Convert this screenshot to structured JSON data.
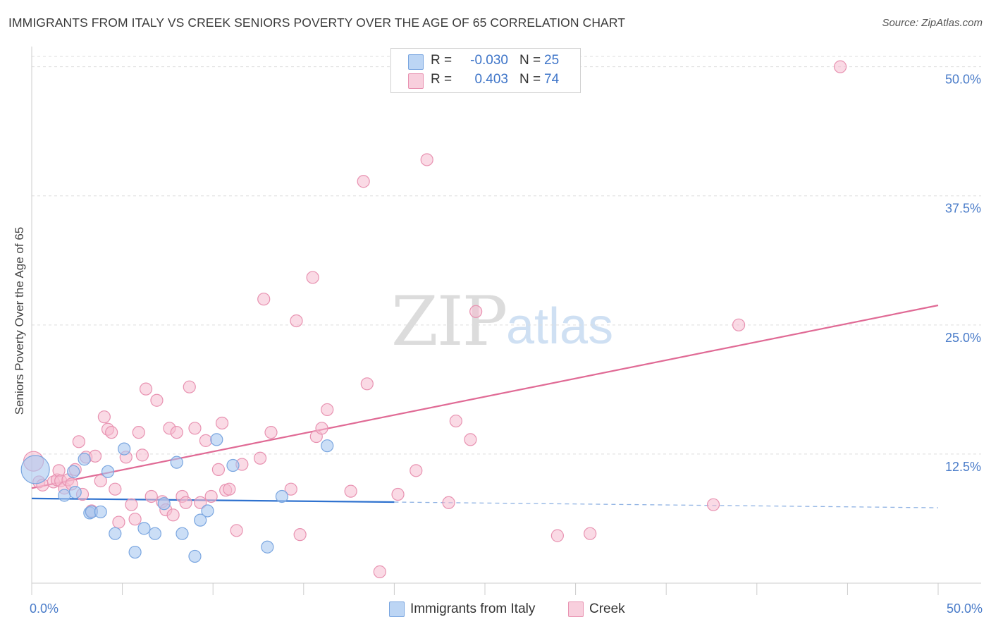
{
  "title": "IMMIGRANTS FROM ITALY VS CREEK SENIORS POVERTY OVER THE AGE OF 65 CORRELATION CHART",
  "source": "Source: ZipAtlas.com",
  "watermark": {
    "zip": "ZIP",
    "atlas": "atlas"
  },
  "legend": [
    {
      "r_label": "R =",
      "r_value": "-0.030",
      "n_label": "N =",
      "n_value": "25"
    },
    {
      "r_label": "R =",
      "r_value": "0.403",
      "n_label": "N =",
      "n_value": "74"
    }
  ],
  "bottom_legend": [
    "Immigrants from Italy",
    "Creek"
  ],
  "colors": {
    "blue_fill": "#a9c8f0",
    "blue_stroke": "#7aa6e0",
    "blue_line": "#2f72cf",
    "pink_fill": "#f6bcd0",
    "pink_stroke": "#e892b1",
    "pink_line": "#e06a95",
    "grid": "#dddddd",
    "axis_text": "#4a7cc9"
  },
  "chart_data": {
    "type": "scatter",
    "title": "IMMIGRANTS FROM ITALY VS CREEK SENIORS POVERTY OVER THE AGE OF 65 CORRELATION CHART",
    "xlabel": "",
    "ylabel": "Seniors Poverty Over the Age of 65",
    "xlim": [
      0,
      50
    ],
    "ylim": [
      0,
      51
    ],
    "x_tick_labels": [
      "0.0%",
      "50.0%"
    ],
    "y_ticks": [
      12.5,
      25.0,
      37.5,
      50.0
    ],
    "y_tick_labels": [
      "12.5%",
      "25.0%",
      "37.5%",
      "50.0%"
    ],
    "grid": true,
    "legend_position": "top-center",
    "series": [
      {
        "name": "Immigrants from Italy",
        "color": "blue",
        "r": -0.03,
        "n": 25,
        "trend": {
          "x0": 0,
          "y0": 8.2,
          "x_solid_end": 20,
          "y_solid_end": 7.85,
          "x1": 50,
          "y1": 7.3
        },
        "points": [
          [
            0.2,
            11.0
          ],
          [
            1.8,
            8.5
          ],
          [
            2.3,
            10.8
          ],
          [
            2.4,
            8.8
          ],
          [
            2.9,
            12.0
          ],
          [
            3.2,
            6.8
          ],
          [
            3.3,
            6.9
          ],
          [
            3.8,
            6.9
          ],
          [
            4.2,
            10.8
          ],
          [
            4.6,
            4.8
          ],
          [
            5.1,
            13.0
          ],
          [
            5.7,
            3.0
          ],
          [
            6.2,
            5.3
          ],
          [
            6.8,
            4.8
          ],
          [
            7.3,
            7.7
          ],
          [
            8.0,
            11.7
          ],
          [
            8.3,
            4.8
          ],
          [
            9.0,
            2.6
          ],
          [
            9.3,
            6.1
          ],
          [
            9.7,
            7.0
          ],
          [
            10.2,
            13.9
          ],
          [
            11.1,
            11.4
          ],
          [
            13.0,
            3.5
          ],
          [
            13.8,
            8.4
          ],
          [
            16.3,
            13.3
          ]
        ]
      },
      {
        "name": "Creek",
        "color": "pink",
        "r": 0.403,
        "n": 74,
        "trend": {
          "x0": 0,
          "y0": 9.2,
          "x1": 50,
          "y1": 26.9
        },
        "points": [
          [
            0.1,
            11.8
          ],
          [
            0.4,
            9.8
          ],
          [
            0.6,
            9.5
          ],
          [
            1.2,
            9.8
          ],
          [
            1.4,
            10.0
          ],
          [
            1.5,
            10.9
          ],
          [
            1.6,
            9.9
          ],
          [
            1.8,
            9.2
          ],
          [
            2.0,
            10.0
          ],
          [
            2.2,
            9.6
          ],
          [
            2.4,
            11.0
          ],
          [
            2.6,
            13.7
          ],
          [
            2.8,
            8.6
          ],
          [
            3.0,
            12.2
          ],
          [
            3.3,
            7.0
          ],
          [
            3.5,
            12.3
          ],
          [
            3.8,
            9.9
          ],
          [
            4.0,
            16.1
          ],
          [
            4.2,
            14.9
          ],
          [
            4.4,
            14.6
          ],
          [
            4.6,
            9.1
          ],
          [
            4.8,
            5.9
          ],
          [
            5.2,
            12.2
          ],
          [
            5.5,
            7.6
          ],
          [
            5.7,
            6.2
          ],
          [
            5.9,
            14.6
          ],
          [
            6.1,
            12.4
          ],
          [
            6.3,
            18.8
          ],
          [
            6.6,
            8.4
          ],
          [
            6.9,
            17.7
          ],
          [
            7.2,
            7.9
          ],
          [
            7.4,
            7.1
          ],
          [
            7.6,
            15.0
          ],
          [
            7.8,
            6.6
          ],
          [
            8.0,
            14.6
          ],
          [
            8.3,
            8.4
          ],
          [
            8.5,
            7.8
          ],
          [
            8.7,
            19.0
          ],
          [
            9.0,
            15.0
          ],
          [
            9.3,
            7.8
          ],
          [
            9.6,
            13.8
          ],
          [
            9.9,
            8.4
          ],
          [
            10.3,
            11.0
          ],
          [
            10.5,
            15.5
          ],
          [
            10.7,
            9.0
          ],
          [
            10.9,
            9.1
          ],
          [
            11.3,
            5.1
          ],
          [
            11.6,
            11.5
          ],
          [
            12.6,
            12.1
          ],
          [
            12.8,
            27.5
          ],
          [
            13.2,
            14.6
          ],
          [
            14.3,
            9.1
          ],
          [
            14.6,
            25.4
          ],
          [
            14.8,
            4.7
          ],
          [
            15.5,
            29.6
          ],
          [
            15.7,
            14.2
          ],
          [
            16.0,
            15.0
          ],
          [
            16.3,
            16.8
          ],
          [
            17.6,
            8.9
          ],
          [
            18.3,
            38.9
          ],
          [
            18.5,
            19.3
          ],
          [
            19.2,
            1.1
          ],
          [
            20.2,
            8.6
          ],
          [
            21.2,
            10.9
          ],
          [
            21.8,
            41.0
          ],
          [
            23.0,
            7.8
          ],
          [
            23.4,
            15.7
          ],
          [
            24.2,
            13.9
          ],
          [
            24.5,
            26.3
          ],
          [
            29.0,
            4.6
          ],
          [
            30.8,
            4.8
          ],
          [
            37.6,
            7.6
          ],
          [
            39.0,
            25.0
          ],
          [
            44.6,
            50.0
          ]
        ]
      }
    ]
  }
}
